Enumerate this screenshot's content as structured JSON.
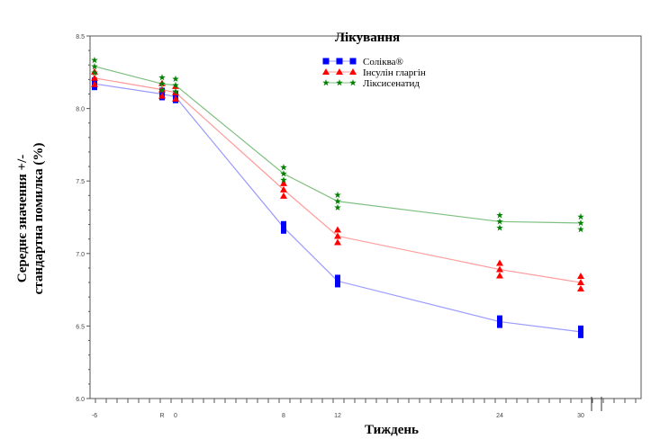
{
  "chart_data": {
    "type": "line",
    "title": "Лікування",
    "xlabel": "Тиждень",
    "ylabel_line1": "Середнє значення +/-",
    "ylabel_line2": "стандартна помилка (%)",
    "ylim": [
      6.0,
      8.5
    ],
    "yticks": [
      "6.0",
      "6.5",
      "7.0",
      "7.5",
      "8.0",
      "8.5"
    ],
    "x": [
      -6,
      -1,
      0,
      8,
      12,
      24,
      30
    ],
    "xtick_labels": [
      "-6",
      "R",
      "0",
      "8",
      "12",
      "24",
      "30"
    ],
    "legend_position": "top-center",
    "series": [
      {
        "name": "Соліква®",
        "color": "#0000ff",
        "marker": "square",
        "values": [
          8.17,
          8.1,
          8.08,
          7.18,
          6.81,
          6.53,
          6.46
        ]
      },
      {
        "name": "Інсулін гларгін",
        "color": "#ff0000",
        "marker": "triangle",
        "values": [
          8.21,
          8.13,
          8.11,
          7.44,
          7.12,
          6.89,
          6.8
        ]
      },
      {
        "name": "Ліксисенатид",
        "color": "#008000",
        "marker": "star",
        "values": [
          8.29,
          8.17,
          8.16,
          7.55,
          7.36,
          7.22,
          7.21
        ]
      }
    ]
  }
}
